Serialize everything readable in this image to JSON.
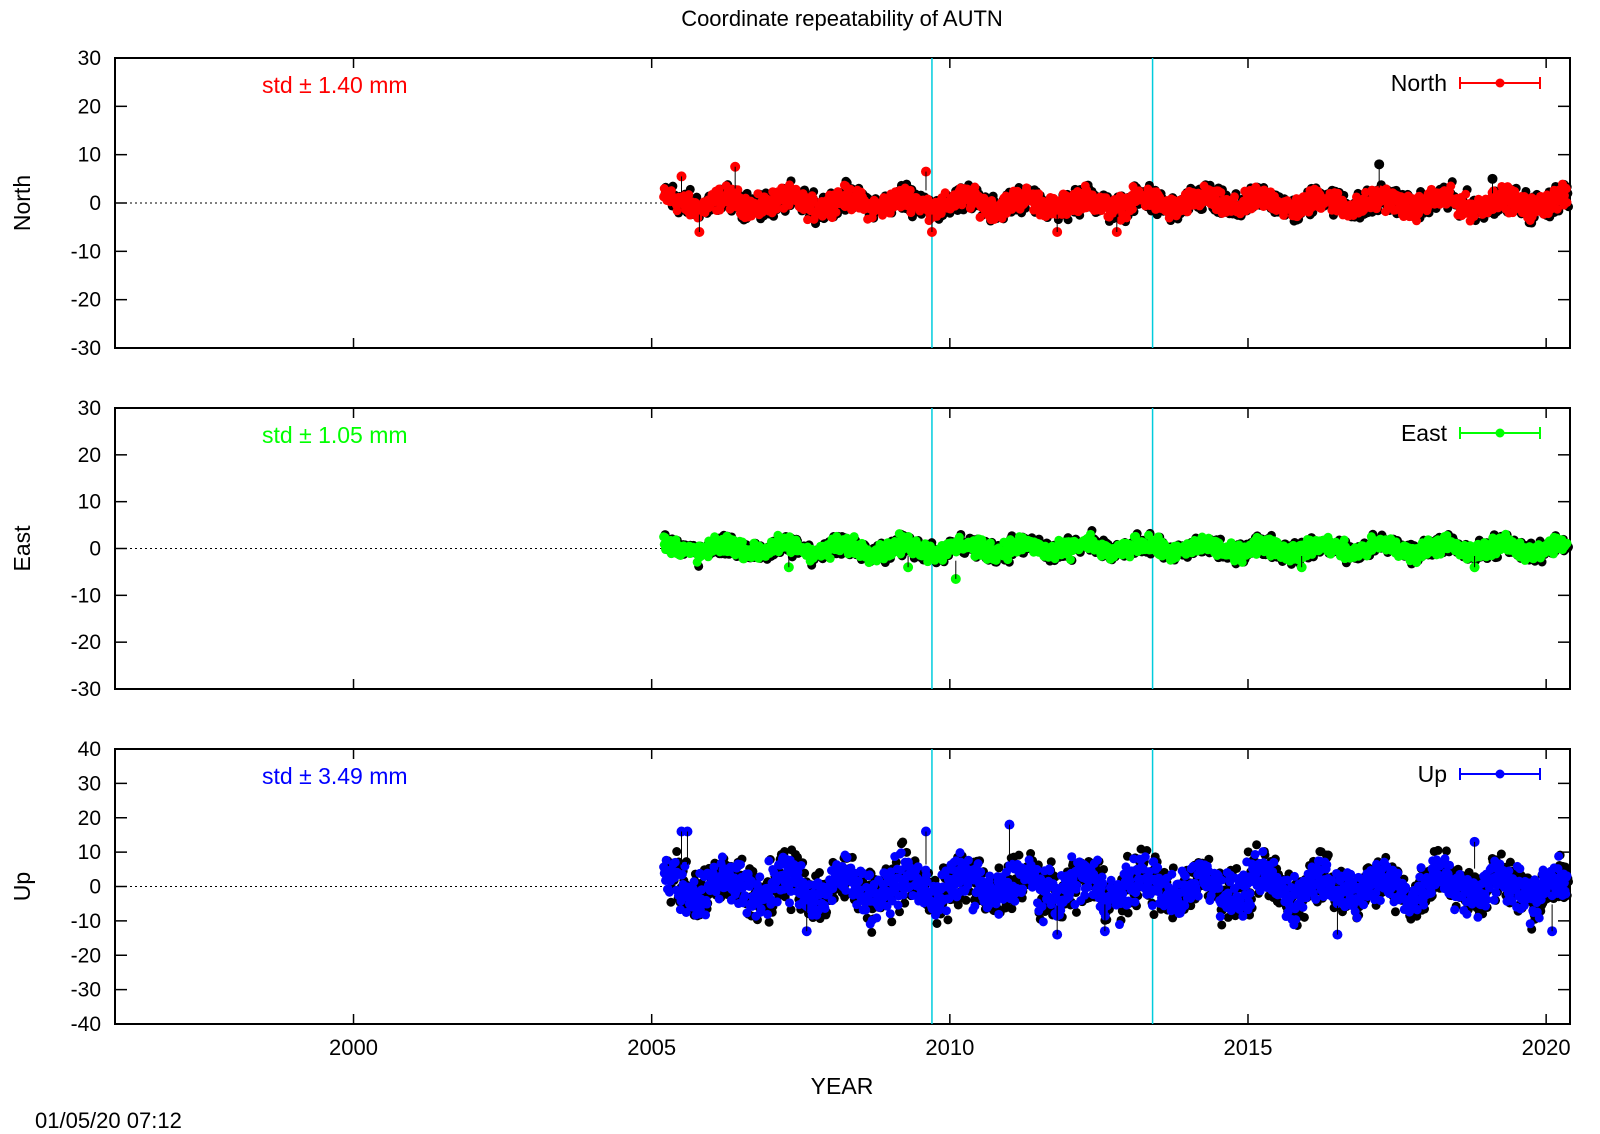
{
  "title": "Coordinate repeatability of AUTN",
  "timestamp": "01/05/20 07:12",
  "colors": {
    "north": "#ff0000",
    "east": "#00ff00",
    "up": "#0000ff",
    "shadow": "#000000",
    "marker_lines": "#00ccdd"
  },
  "chart_data": [
    {
      "type": "scatter",
      "name": "North",
      "ylabel": "North",
      "std_text": "std ± 1.40 mm",
      "legend": "North",
      "legend_position": "top-right",
      "color": "#ff0000",
      "xlim": [
        1996,
        2020.4
      ],
      "ylim": [
        -30,
        30
      ],
      "yticks": [
        30,
        20,
        10,
        0,
        -10,
        -20,
        -30
      ],
      "data_range": [
        2005.2,
        2020.35
      ],
      "amplitude": 2.5,
      "outliers": [
        [
          2005.5,
          5.5
        ],
        [
          2006.4,
          7.5
        ],
        [
          2009.6,
          6.5
        ],
        [
          2011.8,
          -6
        ],
        [
          2012.8,
          -6
        ],
        [
          2017.2,
          8
        ],
        [
          2019.1,
          5
        ],
        [
          2005.8,
          -6
        ],
        [
          2009.7,
          -6
        ]
      ]
    },
    {
      "type": "scatter",
      "name": "East",
      "ylabel": "East",
      "std_text": "std ± 1.05 mm",
      "legend": "East",
      "legend_position": "top-right",
      "color": "#00ff00",
      "xlim": [
        1996,
        2020.4
      ],
      "ylim": [
        -30,
        30
      ],
      "yticks": [
        30,
        20,
        10,
        0,
        -10,
        -20,
        -30
      ],
      "data_range": [
        2005.2,
        2020.35
      ],
      "amplitude": 2.0,
      "outliers": [
        [
          2010.1,
          -6.5
        ],
        [
          2007.3,
          -4
        ],
        [
          2009.3,
          -4
        ],
        [
          2015.9,
          -4
        ],
        [
          2018.8,
          -4
        ]
      ]
    },
    {
      "type": "scatter",
      "name": "Up",
      "ylabel": "Up",
      "std_text": "std ± 3.49 mm",
      "legend": "Up",
      "legend_position": "top-right",
      "color": "#0000ff",
      "xlim": [
        1996,
        2020.4
      ],
      "ylim": [
        -40,
        40
      ],
      "yticks": [
        40,
        30,
        20,
        10,
        0,
        -10,
        -20,
        -30,
        -40
      ],
      "data_range": [
        2005.2,
        2020.35
      ],
      "amplitude": 7.0,
      "outliers": [
        [
          2005.5,
          16
        ],
        [
          2009.6,
          16
        ],
        [
          2011.0,
          18
        ],
        [
          2007.6,
          -13
        ],
        [
          2011.8,
          -14
        ],
        [
          2012.6,
          -13
        ],
        [
          2016.5,
          -14
        ],
        [
          2018.8,
          13
        ],
        [
          2020.1,
          -13
        ],
        [
          2005.6,
          16
        ]
      ]
    }
  ],
  "xaxis": {
    "label": "YEAR",
    "ticks": [
      2000,
      2005,
      2010,
      2015,
      2020
    ],
    "vlines": [
      2009.7,
      2013.4
    ]
  }
}
